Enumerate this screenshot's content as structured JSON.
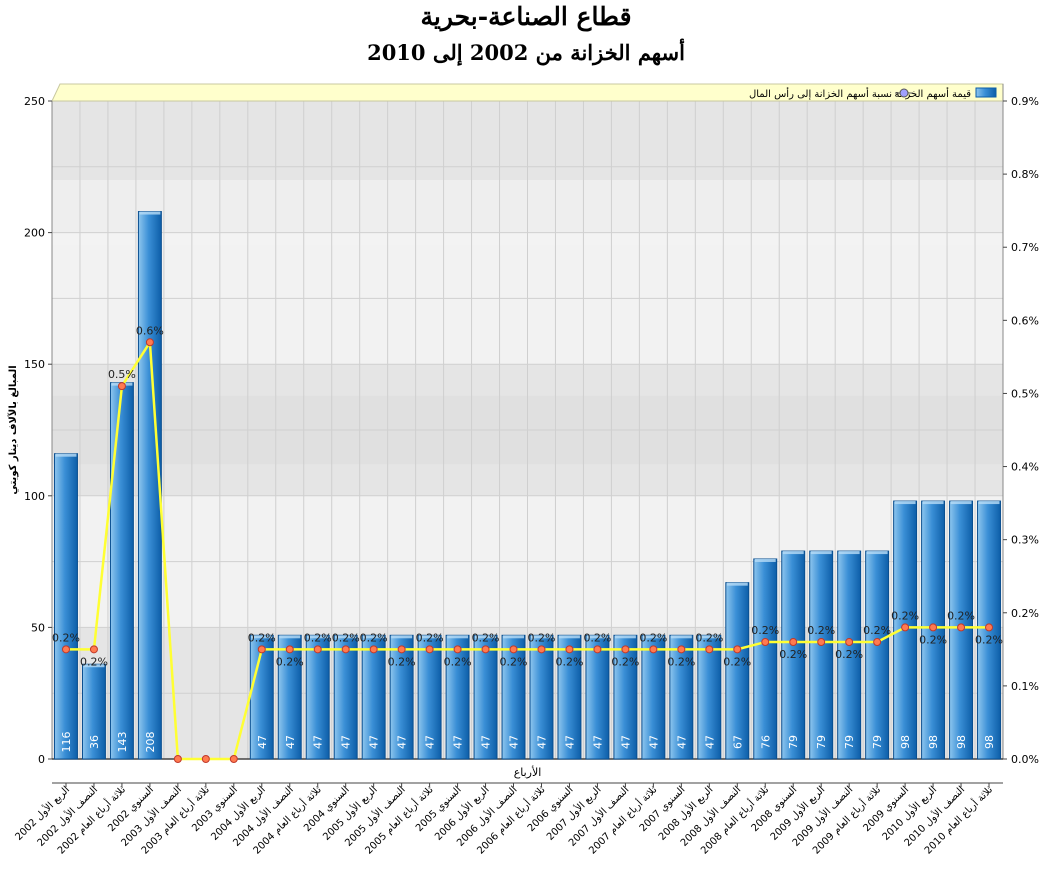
{
  "chart_data": {
    "type": "bar",
    "title": "قطاع الصناعة-بحرية",
    "subtitle": "أسهم الخزانة من 2002 إلى 2010",
    "xlabel": "الأرباع",
    "ylabel": "المبالغ بالآلاف دينار كويتي",
    "ylim": [
      0,
      250
    ],
    "yticks": [
      0,
      50,
      100,
      150,
      200,
      250
    ],
    "y2lim": [
      0,
      0.9
    ],
    "y2ticks": [
      "0.0%",
      "0.1%",
      "0.2%",
      "0.3%",
      "0.4%",
      "0.5%",
      "0.6%",
      "0.7%",
      "0.8%",
      "0.9%"
    ],
    "grid": true,
    "legend_position": "top-right",
    "categories": [
      "الربع الأول 2002",
      "النصف الأول 2002",
      "ثلاثة أرباع العام 2002",
      "السنوي 2002",
      "النصف الأول 2003",
      "ثلاثة أرباع العام 2003",
      "السنوي 2003",
      "الربع الأول 2004",
      "النصف الأول 2004",
      "ثلاثة أرباع العام 2004",
      "السنوي 2004",
      "الربع الأول 2005",
      "النصف الأول 2005",
      "ثلاثة أرباع العام 2005",
      "السنوي 2005",
      "الربع الأول 2006",
      "النصف الأول 2006",
      "ثلاثة أرباع العام 2006",
      "السنوي 2006",
      "الربع الأول 2007",
      "النصف الأول 2007",
      "ثلاثة أرباع العام 2007",
      "السنوي 2007",
      "الربع الأول 2008",
      "النصف الأول 2008",
      "ثلاثة أرباع العام 2008",
      "السنوي 2008",
      "الربع الأول 2009",
      "النصف الأول 2009",
      "ثلاثة أرباع العام 2009",
      "السنوي 2009",
      "الربع الأول 2010",
      "النصف الأول 2010",
      "ثلاثة أرباع العام 2010"
    ],
    "series": [
      {
        "name": "قيمة أسهم الخزانة",
        "type": "bar",
        "axis": "left",
        "values": [
          116,
          36,
          143,
          208,
          null,
          null,
          null,
          47,
          47,
          47,
          47,
          47,
          47,
          47,
          47,
          47,
          47,
          47,
          47,
          47,
          47,
          47,
          47,
          47,
          67,
          76,
          79,
          79,
          79,
          79,
          98,
          98,
          98,
          98
        ],
        "labels": [
          "116",
          "36",
          "143",
          "208",
          "",
          "",
          "",
          "47",
          "47",
          "47",
          "47",
          "47",
          "47",
          "47",
          "47",
          "47",
          "47",
          "47",
          "47",
          "47",
          "47",
          "47",
          "47",
          "47",
          "67",
          "76",
          "79",
          "79",
          "79",
          "79",
          "98",
          "98",
          "98",
          "98"
        ]
      },
      {
        "name": "نسبة أسهم الخزانة إلى رأس المال",
        "type": "line",
        "axis": "right",
        "values": [
          0.15,
          0.15,
          0.51,
          0.57,
          0,
          0,
          0,
          0.15,
          0.15,
          0.15,
          0.15,
          0.15,
          0.15,
          0.15,
          0.15,
          0.15,
          0.15,
          0.15,
          0.15,
          0.15,
          0.15,
          0.15,
          0.15,
          0.15,
          0.15,
          0.16,
          0.16,
          0.16,
          0.16,
          0.16,
          0.18,
          0.18,
          0.18,
          0.18
        ],
        "labels": [
          "0.2%",
          "0.2%",
          "0.5%",
          "0.6%",
          "",
          "",
          "",
          "0.2%",
          "0.2%",
          "0.2%",
          "0.2%",
          "0.2%",
          "0.2%",
          "0.2%",
          "0.2%",
          "0.2%",
          "0.2%",
          "0.2%",
          "0.2%",
          "0.2%",
          "0.2%",
          "0.2%",
          "0.2%",
          "0.2%",
          "0.2%",
          "0.2%",
          "0.2%",
          "0.2%",
          "0.2%",
          "0.2%",
          "0.2%",
          "0.2%",
          "0.2%",
          "0.2%"
        ],
        "label_side": [
          "above",
          "below",
          "above",
          "above",
          "",
          "",
          "",
          "above",
          "below",
          "above",
          "above",
          "above",
          "below",
          "above",
          "below",
          "above",
          "below",
          "above",
          "below",
          "above",
          "below",
          "above",
          "below",
          "above",
          "below",
          "above",
          "below",
          "above",
          "below",
          "above",
          "above",
          "below",
          "above",
          "below"
        ]
      }
    ],
    "colors": {
      "bar_light": "#8ec6ee",
      "bar_mid": "#3a8fd6",
      "bar_dark": "#0d5ea8",
      "line": "#ffff33",
      "marker_fill": "#ff7a50",
      "marker_stroke": "#c0392b",
      "legend_bg": "#ffffcc",
      "band_dark": "#e5e5e5",
      "band_light": "#f2f2f2"
    }
  }
}
